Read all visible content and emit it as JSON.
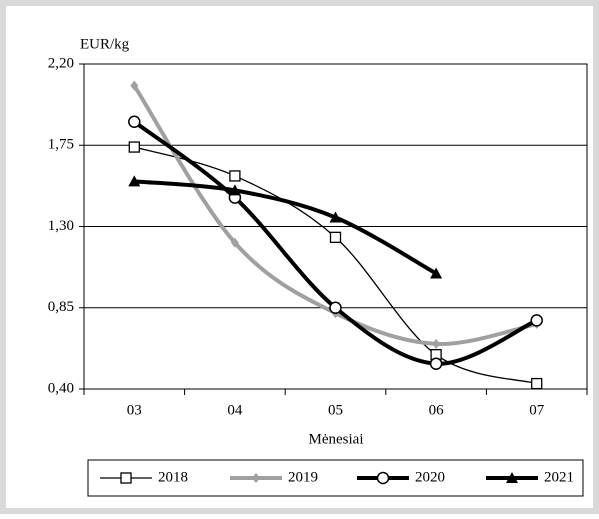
{
  "chart_data": {
    "type": "line",
    "y_axis_label": "EUR/kg",
    "x_axis_label": "Mėnesiai",
    "categories": [
      "03",
      "04",
      "05",
      "06",
      "07"
    ],
    "series": [
      {
        "name": "2018",
        "color": "#000000",
        "marker": "square",
        "values": [
          1.74,
          1.58,
          1.24,
          0.59,
          0.43
        ]
      },
      {
        "name": "2019",
        "color": "#a0a0a0",
        "marker": "diamond",
        "values": [
          2.08,
          1.21,
          0.82,
          0.65,
          0.76
        ]
      },
      {
        "name": "2020",
        "color": "#000000",
        "marker": "circle",
        "values": [
          1.88,
          1.46,
          0.85,
          0.54,
          0.78
        ]
      },
      {
        "name": "2021",
        "color": "#000000",
        "marker": "triangle",
        "values": [
          1.55,
          1.5,
          1.35,
          1.04,
          null
        ]
      }
    ],
    "ylim": [
      0.4,
      2.2
    ],
    "yticks": [
      {
        "value": 0.4,
        "label": "0,40"
      },
      {
        "value": 0.85,
        "label": "0,85"
      },
      {
        "value": 1.3,
        "label": "1,30"
      },
      {
        "value": 1.75,
        "label": "1,75"
      },
      {
        "value": 2.2,
        "label": "2,20"
      }
    ],
    "grid": true,
    "smooth": true,
    "legend": "bottom"
  }
}
